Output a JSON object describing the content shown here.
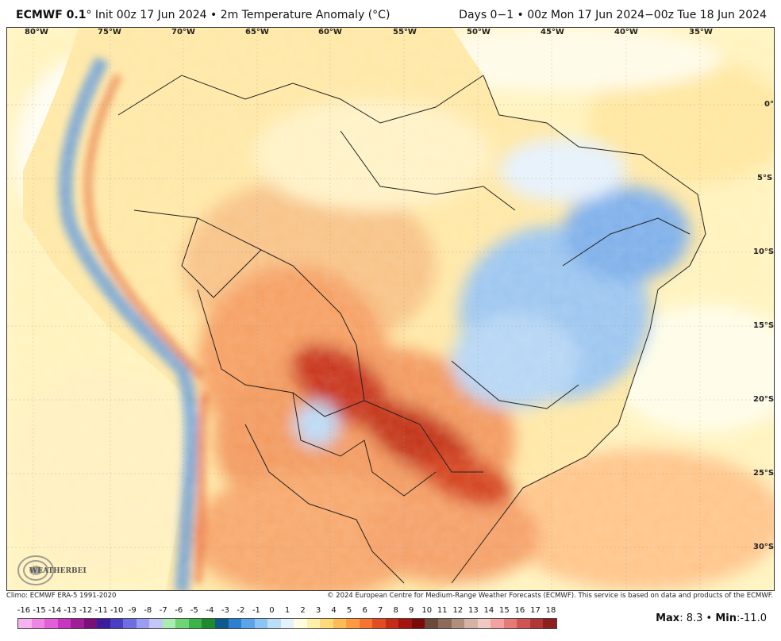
{
  "header": {
    "model": "ECMWF 0.1",
    "init": "° Init 00z 17 Jun 2024 • 2m Temperature Anomaly (°C)",
    "valid": "Days 0−1 • 00z Mon 17 Jun 2024−00z Tue 18 Jun 2024"
  },
  "map": {
    "lon_ticks": [
      "80°W",
      "75°W",
      "70°W",
      "65°W",
      "60°W",
      "55°W",
      "50°W",
      "45°W",
      "40°W",
      "35°W"
    ],
    "lat_ticks": [
      "0°",
      "5°S",
      "10°S",
      "15°S",
      "20°S",
      "25°S",
      "30°S"
    ],
    "logo_text": "WEATHERBELL",
    "logo_icon": "swirl-logo-icon",
    "colors": {
      "ocean_base": "#fff6c8",
      "land_warm": "#f7a36a",
      "land_hot": "#c9321b",
      "cold": "#7fb2ea",
      "border": "#222222"
    }
  },
  "footer": {
    "climo": "Climo: ECMWF ERA-5 1991-2020",
    "copyright": "© 2024 European Centre for Medium-Range Weather Forecasts (ECMWF). This service is based on data and products of the ECMWF."
  },
  "colorbar": {
    "labels": [
      "-16",
      "-15",
      "-14",
      "-13",
      "-12",
      "-11",
      "-10",
      "-9",
      "-8",
      "-7",
      "-6",
      "-5",
      "-4",
      "-3",
      "-2",
      "-1",
      "0",
      "1",
      "2",
      "3",
      "4",
      "5",
      "6",
      "7",
      "8",
      "9",
      "10",
      "11",
      "12",
      "13",
      "14",
      "15",
      "16",
      "17",
      "18"
    ],
    "colors": [
      "#f7b3f0",
      "#ef86e6",
      "#e35ed8",
      "#c836c0",
      "#a21c9a",
      "#7b0f7a",
      "#3b1c9e",
      "#4a3fc4",
      "#6f6ee0",
      "#9b9df0",
      "#c4c6f6",
      "#a8ecb0",
      "#6fd478",
      "#3bb34a",
      "#1d8a2e",
      "#0f5a8c",
      "#2e7fd0",
      "#5aa4ea",
      "#8cc4f4",
      "#bcdff8",
      "#e4f2fc",
      "#fffde0",
      "#fff0a8",
      "#ffd97a",
      "#ffbb55",
      "#ff9a40",
      "#f57530",
      "#e24e22",
      "#c72c17",
      "#a3160f",
      "#7a0b08",
      "#6b4a3c",
      "#8c6b58",
      "#b08f7c",
      "#d4b3a4",
      "#f1c9c4",
      "#f2a3a0",
      "#e67a78",
      "#d15454",
      "#b33636",
      "#8f1f1f"
    ]
  },
  "stats": {
    "max_label": "Max",
    "max_value": ": 8.3 • ",
    "min_label": "Min",
    "min_value": ":-11.0"
  }
}
